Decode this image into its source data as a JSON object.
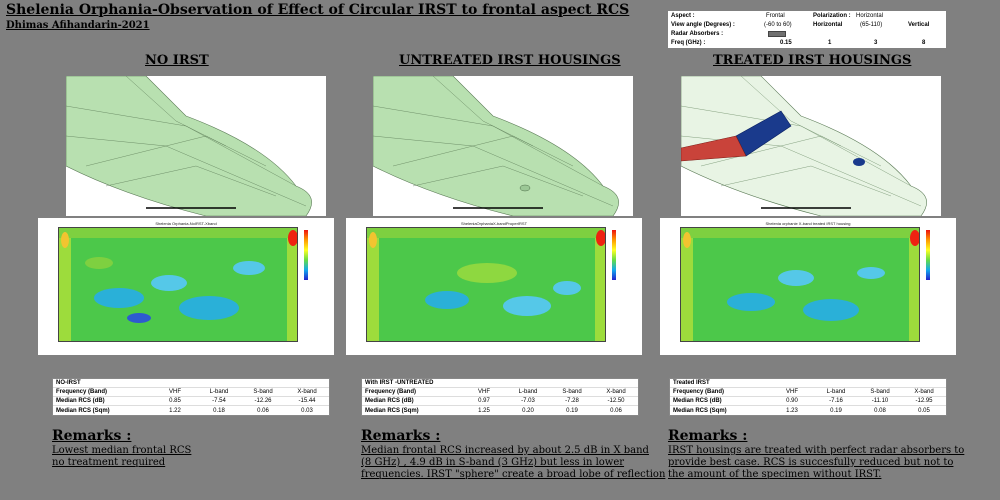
{
  "header": {
    "title": "Shelenia Orphania-Observation of Effect of Circular IRST to frontal aspect RCS",
    "author": "Dhimas Afihandarin-2021"
  },
  "info_table": {
    "aspect_label": "Aspect :",
    "aspect_value": "Frontal",
    "polarization_label": "Polarization :",
    "polarization_value": "Horizontal",
    "view_angle_label": "View angle (Degrees) :",
    "view_angle_value_1": "(-60 to 60)",
    "view_angle_horizontal": "Horizontal",
    "view_angle_value_2": "(65-110)",
    "view_angle_vertical": "Vertical",
    "radar_absorbers_label": "Radar Absorbers :",
    "freq_label": "Freq (GHz) :",
    "freq_values": [
      "0.15",
      "1",
      "3",
      "8"
    ]
  },
  "panels": [
    {
      "heading": "NO IRST",
      "plot_title": "Shelenia Orphania-NoIRST-Xband",
      "table_title": "NO-IRST",
      "freq_label": "Frequency (Band)",
      "bands": [
        "VHF",
        "L-band",
        "S-band",
        "X-band"
      ],
      "median_db_label": "Median RCS (dB)",
      "median_db": [
        "0.85",
        "-7.54",
        "-12.26",
        "-15.44"
      ],
      "median_sqm_label": "Median RCS (Sqm)",
      "median_sqm": [
        "1.22",
        "0.18",
        "0.06",
        "0.03"
      ],
      "remarks_heading": "Remarks :",
      "remarks": [
        "Lowest median frontal RCS",
        "no treatment required"
      ]
    },
    {
      "heading": "UNTREATED IRST HOUSINGS",
      "plot_title": "SheleniaOrphaniaX-bandProperIRST",
      "table_title": "With IRST -UNTREATED",
      "freq_label": "Frequency (Band)",
      "bands": [
        "VHF",
        "L-band",
        "S-band",
        "X-band"
      ],
      "median_db_label": "Median RCS (dB)",
      "median_db": [
        "0.97",
        "-7.03",
        "-7.28",
        "-12.50"
      ],
      "median_sqm_label": "Median RCS (Sqm)",
      "median_sqm": [
        "1.25",
        "0.20",
        "0.19",
        "0.06"
      ],
      "remarks_heading": "Remarks :",
      "remarks": [
        "Median frontal RCS increased by about 2.5 dB in X band",
        "(8 GHz) , 4.9 dB in S-band (3 GHz) but less in lower",
        "frequencies.   IRST \"sphere\" create a broad lobe of reflection"
      ]
    },
    {
      "heading": "TREATED IRST HOUSINGS",
      "plot_title": "Shelenia orphanie X-band treated IRST housing",
      "table_title": "Treated IRST",
      "freq_label": "Frequency (Band)",
      "bands": [
        "VHF",
        "L-band",
        "S-band",
        "X-band"
      ],
      "median_db_label": "Median RCS (dB)",
      "median_db": [
        "0.90",
        "-7.16",
        "-11.10",
        "-12.95"
      ],
      "median_sqm_label": "Median RCS (Sqm)",
      "median_sqm": [
        "1.23",
        "0.19",
        "0.08",
        "0.05"
      ],
      "remarks_heading": "Remarks :",
      "remarks": [
        "IRST housings are treated with  perfect radar absorbers to",
        "provide best case. RCS is succesfully reduced but not to",
        "the amount of the specimen without IRST."
      ]
    }
  ],
  "colors": {
    "background": "#808080",
    "model_fill": "#b8e0b0",
    "absorber": "#1a3a8c",
    "rcs_low": "#2244cc",
    "rcs_mid": "#44c44a",
    "rcs_high": "#ee2211"
  }
}
